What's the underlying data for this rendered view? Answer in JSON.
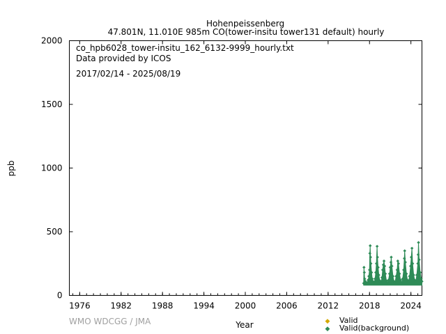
{
  "header": {
    "station": "Hohenpeissenberg",
    "subtitle": "47.801N, 11.010E 985m    CO(tower-insitu tower131 default) hourly"
  },
  "info": {
    "filename": "co_hpb6028_tower-insitu_162_6132-9999_hourly.txt",
    "provider": "Data provided by ICOS",
    "period": "2017/02/14 - 2025/08/19"
  },
  "watermark": "WMO WDCGG / JMA",
  "chart_data": {
    "type": "scatter",
    "xlabel": "Year",
    "ylabel": "ppb",
    "xlim": [
      1974.5,
      2025.6
    ],
    "ylim": [
      0,
      2000
    ],
    "x_ticks": [
      "1976",
      "1982",
      "1988",
      "1994",
      "2000",
      "2006",
      "2012",
      "2018",
      "2024"
    ],
    "y_ticks": [
      "0",
      "500",
      "1000",
      "1500",
      "2000"
    ],
    "grid": false,
    "legend_position": "bottom-right",
    "series": [
      {
        "name": "Valid",
        "color": "#d4a900",
        "points": []
      },
      {
        "name": "Valid(background)",
        "color": "#2e8b57",
        "points": [
          [
            2017.15,
            95
          ],
          [
            2017.2,
            220
          ],
          [
            2017.25,
            180
          ],
          [
            2017.3,
            130
          ],
          [
            2017.4,
            110
          ],
          [
            2017.5,
            100
          ],
          [
            2017.6,
            95
          ],
          [
            2017.7,
            100
          ],
          [
            2017.8,
            120
          ],
          [
            2017.9,
            150
          ],
          [
            2018.0,
            200
          ],
          [
            2018.05,
            330
          ],
          [
            2018.1,
            390
          ],
          [
            2018.15,
            300
          ],
          [
            2018.2,
            250
          ],
          [
            2018.3,
            180
          ],
          [
            2018.4,
            130
          ],
          [
            2018.5,
            110
          ],
          [
            2018.6,
            100
          ],
          [
            2018.7,
            105
          ],
          [
            2018.8,
            130
          ],
          [
            2018.9,
            180
          ],
          [
            2019.0,
            250
          ],
          [
            2019.1,
            385
          ],
          [
            2019.15,
            300
          ],
          [
            2019.25,
            220
          ],
          [
            2019.35,
            160
          ],
          [
            2019.5,
            115
          ],
          [
            2019.6,
            100
          ],
          [
            2019.7,
            110
          ],
          [
            2019.8,
            140
          ],
          [
            2019.9,
            200
          ],
          [
            2020.0,
            240
          ],
          [
            2020.1,
            270
          ],
          [
            2020.2,
            230
          ],
          [
            2020.3,
            170
          ],
          [
            2020.45,
            115
          ],
          [
            2020.6,
            100
          ],
          [
            2020.75,
            120
          ],
          [
            2020.9,
            170
          ],
          [
            2021.0,
            220
          ],
          [
            2021.1,
            260
          ],
          [
            2021.15,
            300
          ],
          [
            2021.25,
            230
          ],
          [
            2021.4,
            150
          ],
          [
            2021.55,
            110
          ],
          [
            2021.7,
            105
          ],
          [
            2021.85,
            150
          ],
          [
            2022.0,
            200
          ],
          [
            2022.1,
            270
          ],
          [
            2022.2,
            250
          ],
          [
            2022.35,
            170
          ],
          [
            2022.5,
            120
          ],
          [
            2022.65,
            100
          ],
          [
            2022.8,
            130
          ],
          [
            2022.95,
            200
          ],
          [
            2023.05,
            290
          ],
          [
            2023.1,
            350
          ],
          [
            2023.2,
            260
          ],
          [
            2023.35,
            170
          ],
          [
            2023.5,
            120
          ],
          [
            2023.65,
            110
          ],
          [
            2023.8,
            150
          ],
          [
            2023.95,
            230
          ],
          [
            2024.05,
            300
          ],
          [
            2024.15,
            370
          ],
          [
            2024.25,
            250
          ],
          [
            2024.4,
            160
          ],
          [
            2024.55,
            120
          ],
          [
            2024.7,
            110
          ],
          [
            2024.85,
            160
          ],
          [
            2025.0,
            250
          ],
          [
            2025.05,
            320
          ],
          [
            2025.1,
            415
          ],
          [
            2025.2,
            280
          ],
          [
            2025.35,
            180
          ],
          [
            2025.5,
            130
          ],
          [
            2025.6,
            110
          ]
        ]
      }
    ]
  }
}
